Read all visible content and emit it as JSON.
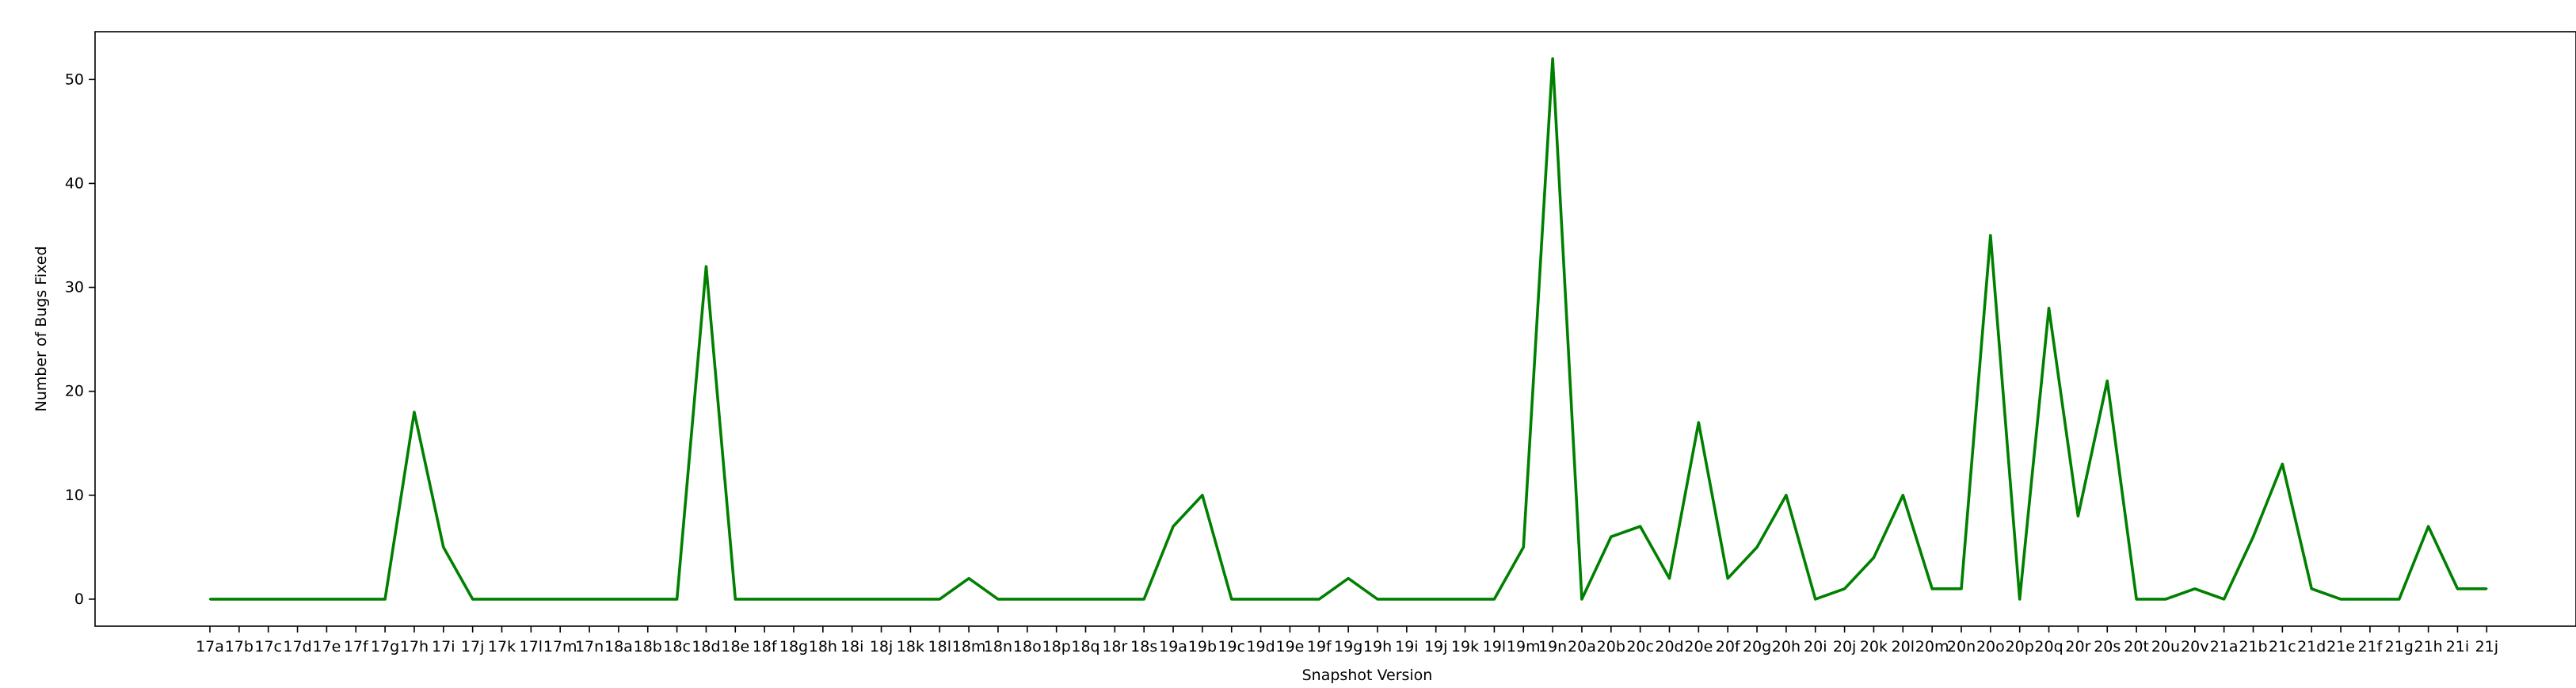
{
  "chart_data": {
    "type": "line",
    "title": "",
    "xlabel": "Snapshot Version",
    "ylabel": "Number of Bugs Fixed",
    "ylim": [
      -2.6,
      54.6
    ],
    "yticks": [
      0,
      10,
      20,
      30,
      40,
      50
    ],
    "grid": false,
    "line_color": "#008000",
    "categories": [
      "17a",
      "17b",
      "17c",
      "17d",
      "17e",
      "17f",
      "17g",
      "17h",
      "17i",
      "17j",
      "17k",
      "17l",
      "17m",
      "17n",
      "18a",
      "18b",
      "18c",
      "18d",
      "18e",
      "18f",
      "18g",
      "18h",
      "18i",
      "18j",
      "18k",
      "18l",
      "18m",
      "18n",
      "18o",
      "18p",
      "18q",
      "18r",
      "18s",
      "19a",
      "19b",
      "19c",
      "19d",
      "19e",
      "19f",
      "19g",
      "19h",
      "19i",
      "19j",
      "19k",
      "19l",
      "19m",
      "19n",
      "20a",
      "20b",
      "20c",
      "20d",
      "20e",
      "20f",
      "20g",
      "20h",
      "20i",
      "20j",
      "20k",
      "20l",
      "20m",
      "20n",
      "20o",
      "20p",
      "20q",
      "20r",
      "20s",
      "20t",
      "20u",
      "20v",
      "21a",
      "21b",
      "21c",
      "21d",
      "21e",
      "21f",
      "21g",
      "21h",
      "21i",
      "21j"
    ],
    "series": [
      {
        "values": [
          0,
          0,
          0,
          0,
          0,
          0,
          0,
          18,
          5,
          0,
          0,
          0,
          0,
          0,
          0,
          0,
          0,
          32,
          0,
          0,
          0,
          0,
          0,
          0,
          0,
          0,
          2,
          0,
          0,
          0,
          0,
          0,
          0,
          7,
          10,
          0,
          0,
          0,
          0,
          2,
          0,
          0,
          0,
          0,
          0,
          5,
          52,
          0,
          6,
          7,
          2,
          17,
          2,
          5,
          10,
          0,
          1,
          4,
          10,
          1,
          1,
          35,
          0,
          28,
          8,
          21,
          0,
          0,
          1,
          0,
          6,
          13,
          1,
          0,
          0,
          0,
          7,
          1,
          1
        ]
      }
    ]
  }
}
